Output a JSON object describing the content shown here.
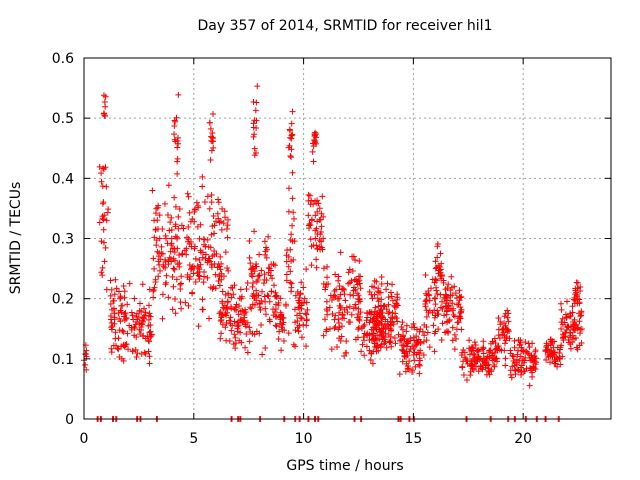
{
  "chart_data": {
    "type": "scatter",
    "title": "Day 357 of 2014, SRMTID for receiver hil1",
    "xlabel": "GPS time / hours",
    "ylabel": "SRMTID / TECUs",
    "xlim": [
      0,
      24
    ],
    "ylim": [
      0,
      0.6
    ],
    "xticks": [
      0,
      5,
      10,
      15,
      20
    ],
    "yticks": [
      0,
      0.1,
      0.2,
      0.3,
      0.4,
      0.5,
      0.6
    ],
    "xtick_labels": [
      "0",
      "5",
      "10",
      "15",
      "20"
    ],
    "ytick_labels": [
      "0",
      "0.1",
      "0.2",
      "0.3",
      "0.4",
      "0.5",
      "0.6"
    ],
    "grid": true,
    "marker": "+",
    "color": "#ff0000",
    "series": [
      {
        "name": "SRMTID",
        "segments": [
          {
            "start": 0.0,
            "end": 0.12,
            "level": 0.1,
            "spread": 0.025
          },
          {
            "start": 0.7,
            "end": 1.1,
            "level": 0.33,
            "spread": 0.12
          },
          {
            "start": 0.9,
            "end": 1.0,
            "level": 0.52,
            "spread": 0.03
          },
          {
            "start": 1.2,
            "end": 3.1,
            "level": 0.16,
            "spread": 0.06
          },
          {
            "start": 3.1,
            "end": 6.6,
            "level": 0.28,
            "spread": 0.09
          },
          {
            "start": 4.1,
            "end": 4.3,
            "level": 0.47,
            "spread": 0.05
          },
          {
            "start": 5.7,
            "end": 5.9,
            "level": 0.46,
            "spread": 0.04
          },
          {
            "start": 6.2,
            "end": 7.4,
            "level": 0.17,
            "spread": 0.05
          },
          {
            "start": 7.4,
            "end": 8.7,
            "level": 0.22,
            "spread": 0.08
          },
          {
            "start": 7.7,
            "end": 7.9,
            "level": 0.5,
            "spread": 0.06
          },
          {
            "start": 8.7,
            "end": 9.2,
            "level": 0.16,
            "spread": 0.05
          },
          {
            "start": 9.2,
            "end": 9.6,
            "level": 0.3,
            "spread": 0.12
          },
          {
            "start": 9.3,
            "end": 9.5,
            "level": 0.47,
            "spread": 0.03
          },
          {
            "start": 9.6,
            "end": 10.2,
            "level": 0.18,
            "spread": 0.05
          },
          {
            "start": 10.2,
            "end": 10.9,
            "level": 0.33,
            "spread": 0.08
          },
          {
            "start": 10.4,
            "end": 10.6,
            "level": 0.46,
            "spread": 0.03
          },
          {
            "start": 10.9,
            "end": 12.6,
            "level": 0.2,
            "spread": 0.07
          },
          {
            "start": 12.6,
            "end": 14.0,
            "level": 0.14,
            "spread": 0.04
          },
          {
            "start": 13.0,
            "end": 14.3,
            "level": 0.18,
            "spread": 0.05
          },
          {
            "start": 14.3,
            "end": 15.5,
            "level": 0.12,
            "spread": 0.04
          },
          {
            "start": 15.5,
            "end": 17.2,
            "level": 0.18,
            "spread": 0.05
          },
          {
            "start": 16.0,
            "end": 16.3,
            "level": 0.25,
            "spread": 0.03
          },
          {
            "start": 17.2,
            "end": 18.8,
            "level": 0.1,
            "spread": 0.025
          },
          {
            "start": 18.8,
            "end": 19.4,
            "level": 0.14,
            "spread": 0.04
          },
          {
            "start": 19.4,
            "end": 20.6,
            "level": 0.1,
            "spread": 0.03
          },
          {
            "start": 21.0,
            "end": 21.7,
            "level": 0.11,
            "spread": 0.02
          },
          {
            "start": 21.7,
            "end": 22.7,
            "level": 0.15,
            "spread": 0.04
          },
          {
            "start": 22.3,
            "end": 22.6,
            "level": 0.21,
            "spread": 0.02
          }
        ],
        "zero_points": [
          0.6,
          0.75,
          1.3,
          1.45,
          2.4,
          2.55,
          3.3,
          6.7,
          7.0,
          7.1,
          8.0,
          9.1,
          9.6,
          9.8,
          10.2,
          10.5,
          10.65,
          12.3,
          12.6,
          14.3,
          14.4,
          14.8,
          15.0,
          17.4,
          18.5,
          19.3,
          19.6,
          20.1,
          20.6,
          21.0,
          21.6
        ]
      }
    ]
  }
}
